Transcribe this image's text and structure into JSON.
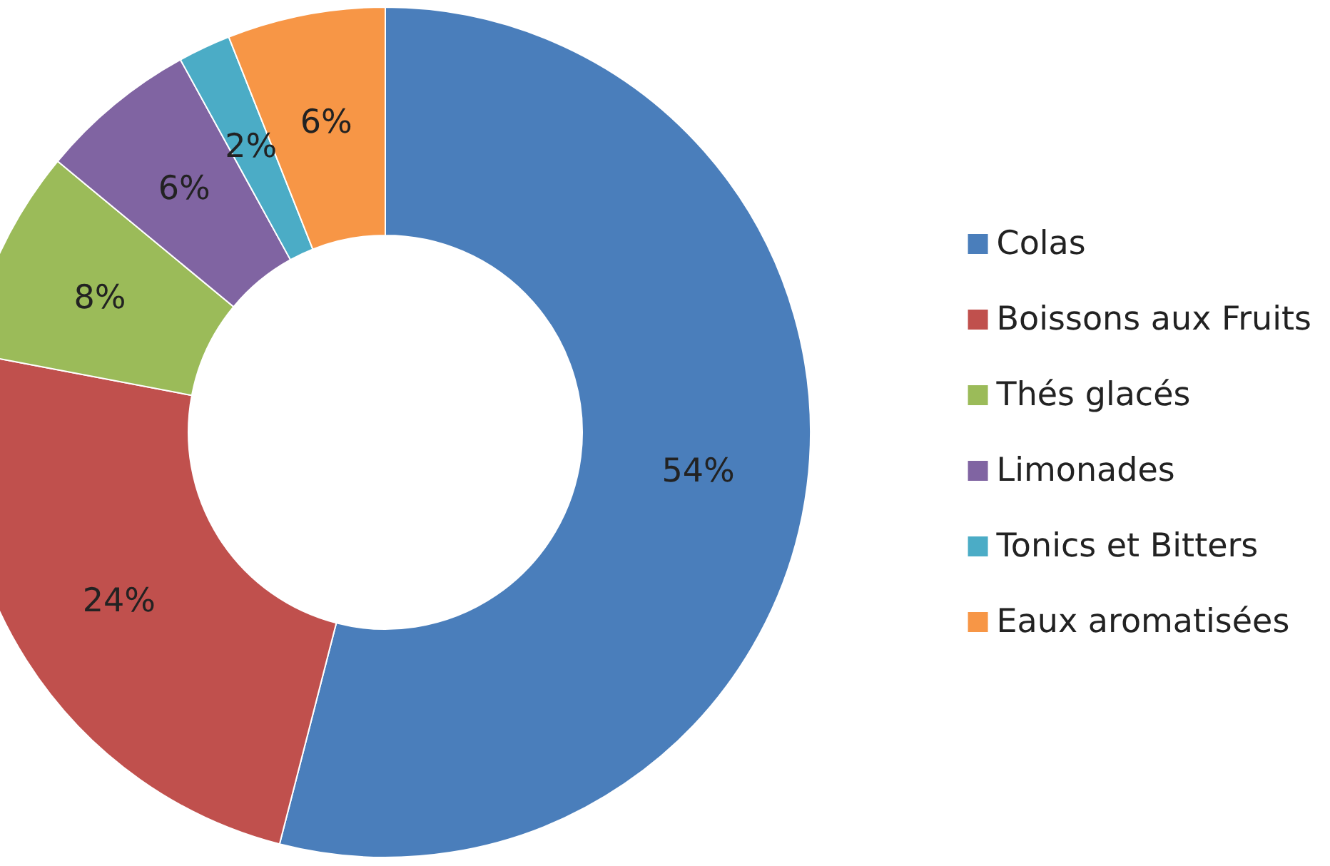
{
  "chart_data": {
    "type": "donut",
    "categories": [
      "Colas",
      "Boissons aux Fruits",
      "Thés glacés",
      "Limonades",
      "Tonics et Bitters",
      "Eaux aromatisées"
    ],
    "values": [
      54,
      24,
      8,
      6,
      2,
      6
    ],
    "value_labels": [
      "54%",
      "24%",
      "8%",
      "6%",
      "2%",
      "6%"
    ],
    "colors": [
      "#4a7ebb",
      "#c0504d",
      "#9bbb59",
      "#8064a2",
      "#4bacc6",
      "#f79646"
    ],
    "legend": "right"
  }
}
